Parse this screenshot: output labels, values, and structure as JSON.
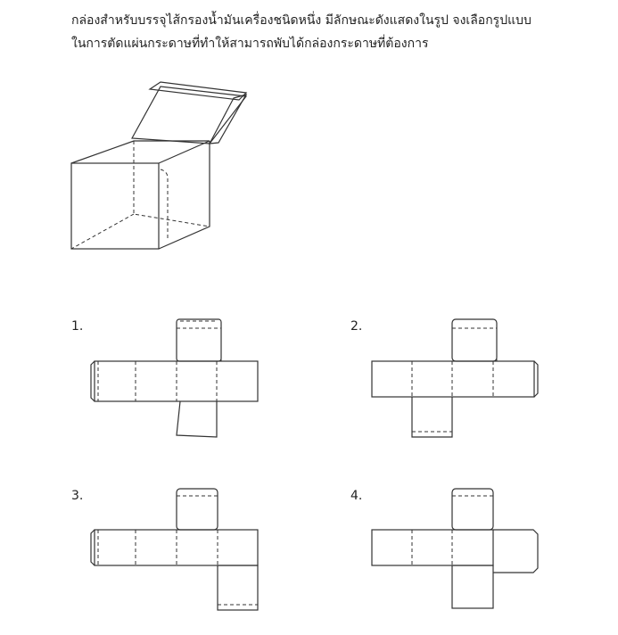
{
  "question": {
    "line1": "กล่องสำหรับบรรจุไส้กรองน้ำมันเครื่องชนิดหนึ่ง มีลักษณะดังแสดงในรูป จงเลือกรูปแบบ",
    "line2": "ในการตัดแผ่นกระดาษที่ทำให้สามารถพับได้กล่องกระดาษที่ต้องการ"
  },
  "figure": {
    "name": "open-box-illustration"
  },
  "options": [
    {
      "label": "1."
    },
    {
      "label": "2."
    },
    {
      "label": "3."
    },
    {
      "label": "4."
    }
  ]
}
